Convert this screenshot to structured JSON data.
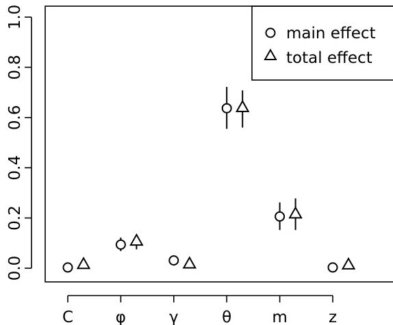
{
  "chart_data": {
    "type": "scatter",
    "title": "",
    "xlabel": "",
    "ylabel": "",
    "categories": [
      "C",
      "φ",
      "γ",
      "θ",
      "m",
      "z"
    ],
    "ylim": [
      0,
      1
    ],
    "y_ticks": [
      "0.0",
      "0.2",
      "0.4",
      "0.6",
      "0.8",
      "1.0"
    ],
    "y_tick_values": [
      0,
      0.2,
      0.4,
      0.6,
      0.8,
      1.0
    ],
    "series": [
      {
        "name": "main effect",
        "marker": "circle",
        "values": [
          0.003,
          0.094,
          0.031,
          0.637,
          0.206,
          0.003
        ],
        "lower": [
          null,
          0.068,
          null,
          0.555,
          0.152,
          null
        ],
        "upper": [
          null,
          0.122,
          null,
          0.722,
          0.262,
          null
        ]
      },
      {
        "name": "total effect",
        "marker": "triangle",
        "values": [
          0.015,
          0.108,
          0.017,
          0.64,
          0.216,
          0.013
        ],
        "lower": [
          null,
          0.075,
          null,
          0.56,
          0.152,
          null
        ],
        "upper": [
          null,
          0.135,
          null,
          0.708,
          0.278,
          null
        ]
      }
    ],
    "grid": false,
    "legend_position": "top-right"
  }
}
